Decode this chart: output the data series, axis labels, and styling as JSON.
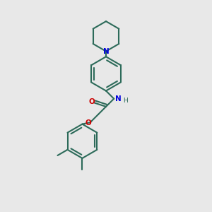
{
  "background_color": "#e8e8e8",
  "bond_color": "#2d6b5a",
  "nitrogen_color": "#0000dd",
  "oxygen_color": "#cc0000",
  "bond_width": 1.5,
  "figsize": [
    3.0,
    3.0
  ],
  "dpi": 100,
  "xlim": [
    0,
    10
  ],
  "ylim": [
    0,
    10
  ],
  "font_size": 7.5
}
